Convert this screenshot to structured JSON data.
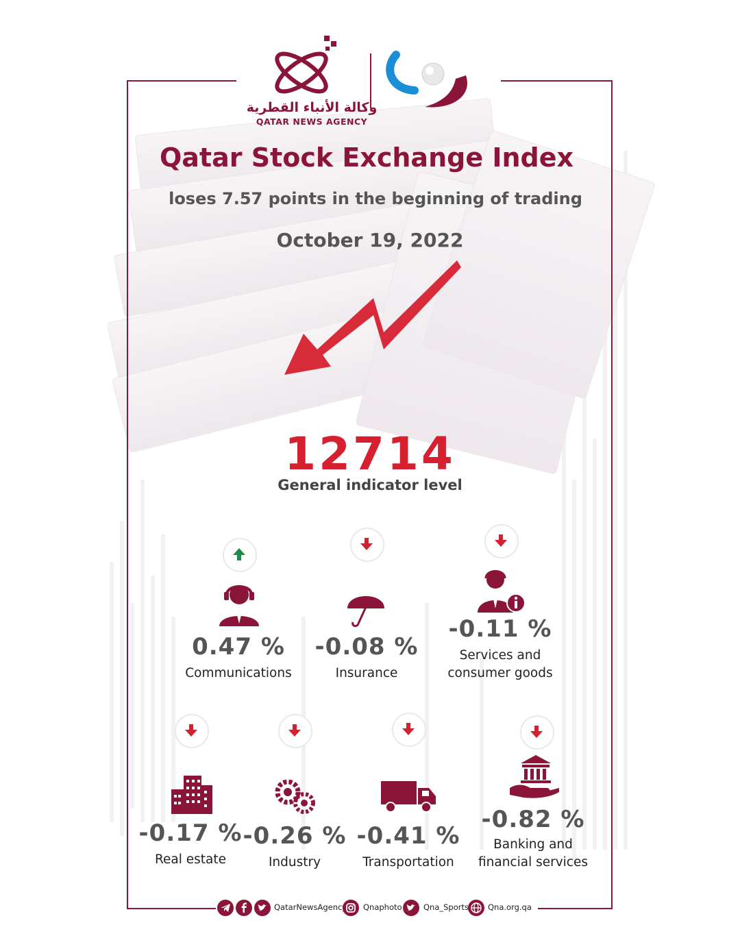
{
  "header": {
    "agency_arabic": "وكالة الأنباء القطرية",
    "agency_english": "QATAR NEWS AGENCY"
  },
  "headline": {
    "title": "Qatar Stock Exchange Index",
    "subtitle": "loses 7.57 points in the beginning of trading",
    "date": "October 19, 2022"
  },
  "indicator": {
    "value": "12714",
    "label": "General indicator level"
  },
  "colors": {
    "brand": "#8a1538",
    "accent_red": "#d6202f",
    "up_green": "#1d8a4a"
  },
  "sectors": [
    {
      "label": "Communications",
      "change": "0.47 %",
      "direction": "up",
      "icon": "call-center-agent-icon"
    },
    {
      "label": "Insurance",
      "change": "-0.08 %",
      "direction": "down",
      "icon": "umbrella-icon"
    },
    {
      "label_line1": "Services and",
      "label_line2": "consumer goods",
      "change": "-0.11 %",
      "direction": "down",
      "icon": "service-agent-info-icon"
    },
    {
      "label": "Real estate",
      "change": "-0.17 %",
      "direction": "down",
      "icon": "building-icon"
    },
    {
      "label": "Industry",
      "change": "-0.26 %",
      "direction": "down",
      "icon": "gears-icon"
    },
    {
      "label": "Transportation",
      "change": "-0.41 %",
      "direction": "down",
      "icon": "truck-icon"
    },
    {
      "label_line1": "Banking and",
      "label_line2": "financial services",
      "change": "-0.82 %",
      "direction": "down",
      "icon": "bank-in-hand-icon"
    }
  ],
  "footer": {
    "handle_main": "QatarNewsAgency",
    "handle_photo": "Qnaphoto",
    "handle_sports": "Qna_Sports",
    "website": "Qna.org.qa"
  }
}
